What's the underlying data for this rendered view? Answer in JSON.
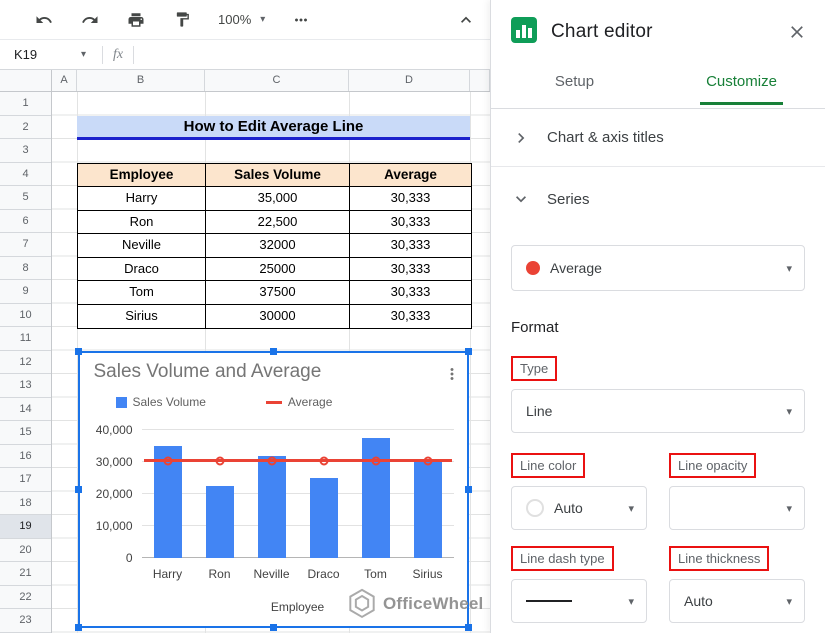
{
  "colors": {
    "accent_green": "#188038",
    "bar_blue": "#4285f4",
    "line_red": "#ea4335",
    "selection_blue": "#1a73e8",
    "highlight_red": "#ea1111",
    "title_band_blue": "#c9daf8",
    "title_underline_blue": "#1c22cc",
    "table_header_peach": "#fce5cd"
  },
  "icons": {
    "dropdown_arrow": "▾"
  },
  "toolbar": {
    "zoom_value": "100%"
  },
  "formula_bar": {
    "cell_ref": "K19",
    "fx_label": "fx"
  },
  "grid": {
    "column_letters": [
      "A",
      "B",
      "C",
      "D"
    ],
    "row_numbers": [
      1,
      2,
      3,
      4,
      5,
      6,
      7,
      8,
      9,
      10,
      11,
      12,
      13,
      14,
      15,
      16,
      17,
      18,
      19,
      20,
      21,
      22,
      23
    ],
    "selected_row": 19
  },
  "sheet_content": {
    "title": "How to Edit Average Line",
    "table": {
      "headers": [
        "Employee",
        "Sales Volume",
        "Average"
      ],
      "rows": [
        [
          "Harry",
          "35,000",
          "30,333"
        ],
        [
          "Ron",
          "22,500",
          "30,333"
        ],
        [
          "Neville",
          "32000",
          "30,333"
        ],
        [
          "Draco",
          "25000",
          "30,333"
        ],
        [
          "Tom",
          "37500",
          "30,333"
        ],
        [
          "Sirius",
          "30000",
          "30,333"
        ]
      ]
    },
    "watermark": "OfficeWheel"
  },
  "chart_data": {
    "type": "bar",
    "title": "Sales Volume and Average",
    "categories": [
      "Harry",
      "Ron",
      "Neville",
      "Draco",
      "Tom",
      "Sirius"
    ],
    "series": [
      {
        "name": "Sales Volume",
        "type": "bar",
        "color": "#4285f4",
        "values": [
          35000,
          22500,
          32000,
          25000,
          37500,
          30000
        ]
      },
      {
        "name": "Average",
        "type": "line",
        "color": "#ea4335",
        "values": [
          30333,
          30333,
          30333,
          30333,
          30333,
          30333
        ]
      }
    ],
    "xlabel": "Employee",
    "ylabel": "",
    "ylim": [
      0,
      40000
    ],
    "yticks": [
      {
        "value": 0,
        "label": "0"
      },
      {
        "value": 10000,
        "label": "10,000"
      },
      {
        "value": 20000,
        "label": "20,000"
      },
      {
        "value": 30000,
        "label": "30,000"
      },
      {
        "value": 40000,
        "label": "40,000"
      }
    ],
    "legend_position": "top",
    "grid": true
  },
  "chart_editor": {
    "title": "Chart editor",
    "tabs": [
      {
        "label": "Setup",
        "active": false
      },
      {
        "label": "Customize",
        "active": true
      }
    ],
    "sections": [
      {
        "label": "Chart & axis titles",
        "expanded": false
      },
      {
        "label": "Series",
        "expanded": true
      }
    ],
    "series_select": {
      "value": "Average",
      "swatch_color": "#ea4335"
    },
    "format_heading": "Format",
    "fields": {
      "type": {
        "label": "Type",
        "value": "Line",
        "highlighted": true
      },
      "line_color": {
        "label": "Line color",
        "value": "Auto",
        "highlighted": true
      },
      "line_opacity": {
        "label": "Line opacity",
        "value": "",
        "highlighted": true
      },
      "line_dash_type": {
        "label": "Line dash type",
        "value": "solid",
        "highlighted": true
      },
      "line_thickness": {
        "label": "Line thickness",
        "value": "Auto",
        "highlighted": true
      }
    }
  }
}
